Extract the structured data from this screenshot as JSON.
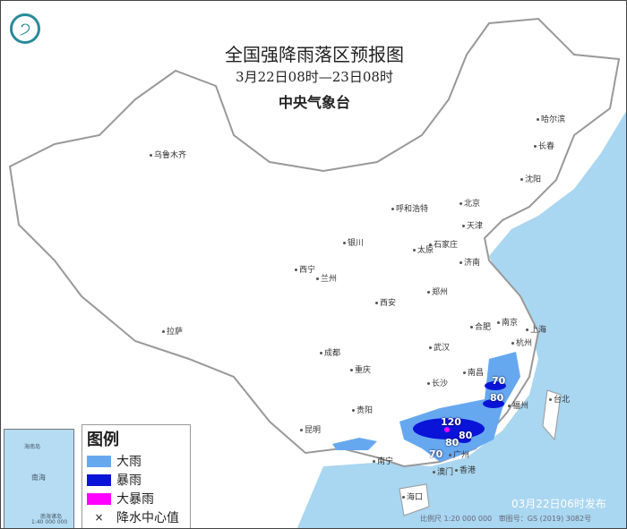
{
  "header": {
    "title": "全国强降雨落区预报图",
    "period": "3月22日08时—23日08时",
    "organization": "中央气象台",
    "logo_icon": "cma-logo-icon"
  },
  "colors": {
    "sea": "#a9d6f0",
    "land": "#ffffff",
    "heavy_rain": "#66a8f0",
    "rainstorm": "#0a14d8",
    "heavy_rainstorm": "#ff00ff",
    "border": "#999999"
  },
  "cities": [
    "乌鲁木齐",
    "哈尔滨",
    "长春",
    "沈阳",
    "呼和浩特",
    "北京",
    "天津",
    "石家庄",
    "太原",
    "银川",
    "西宁",
    "兰州",
    "济南",
    "郑州",
    "西安",
    "合肥",
    "南京",
    "上海",
    "拉萨",
    "成都",
    "武汉",
    "杭州",
    "重庆",
    "长沙",
    "南昌",
    "福州",
    "台北",
    "贵阳",
    "昆明",
    "南宁",
    "广州",
    "澳门",
    "香港",
    "海口"
  ],
  "precip_centers": [
    "70",
    "80",
    "120",
    "80",
    "80",
    "70"
  ],
  "legend": {
    "title": "图例",
    "items": [
      {
        "label": "大雨",
        "color": "#66a8f0"
      },
      {
        "label": "暴雨",
        "color": "#0a14d8"
      },
      {
        "label": "大暴雨",
        "color": "#ff00ff"
      },
      {
        "label": "降水中心值",
        "symbol": "×"
      }
    ]
  },
  "inset": {
    "sea_label": "南海",
    "island_label": "海南岛",
    "scale": "1:40 000 000",
    "islands": "南海诸岛"
  },
  "footer": {
    "issued": "03月22日06时发布",
    "scale": "比例尺 1:20 000 000",
    "map_review": "审图号：GS (2019) 3082号"
  }
}
